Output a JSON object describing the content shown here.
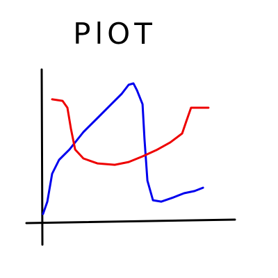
{
  "chart_data": {
    "type": "line",
    "title": "PlOT",
    "xlim": [
      0,
      100
    ],
    "ylim": [
      0,
      100
    ],
    "series": [
      {
        "color": "#0000ee",
        "x": [
          0.7,
          2.9,
          5.4,
          9.0,
          14.4,
          21.6,
          28.8,
          36.0,
          41.4,
          45.0,
          47.5,
          49.3,
          52.2,
          53.2,
          54.7,
          57.6,
          61.9,
          68.3,
          73.7,
          79.1,
          83.5
        ],
        "values": [
          5.5,
          13.6,
          31.8,
          40.9,
          47.7,
          59.1,
          68.2,
          77.3,
          84.1,
          90.0,
          90.9,
          86.4,
          77.3,
          54.5,
          27.3,
          14.5,
          13.6,
          16.4,
          19.1,
          20.5,
          22.7
        ]
      },
      {
        "color": "#ee0000",
        "x": [
          5.4,
          10.8,
          13.3,
          15.1,
          17.3,
          21.6,
          28.8,
          37.8,
          45.0,
          52.2,
          59.4,
          66.5,
          72.7,
          74.8,
          77.3,
          86.3
        ],
        "values": [
          80.5,
          79.5,
          75.0,
          61.4,
          47.7,
          41.8,
          38.6,
          37.7,
          39.5,
          43.2,
          47.3,
          52.3,
          58.2,
          65.9,
          75.0,
          75.0
        ]
      }
    ]
  }
}
